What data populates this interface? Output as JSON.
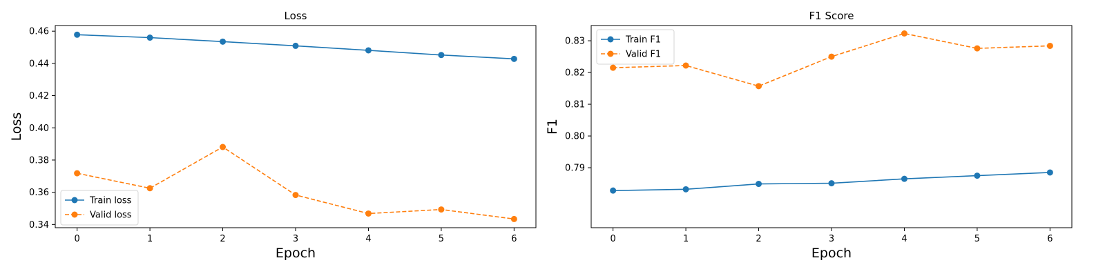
{
  "chart_data": [
    {
      "type": "line",
      "title": "Loss",
      "xlabel": "Epoch",
      "ylabel": "Loss",
      "x": [
        0,
        1,
        2,
        3,
        4,
        5,
        6
      ],
      "xlim": [
        -0.3,
        6.3
      ],
      "ylim": [
        0.338,
        0.4635
      ],
      "yticks": [
        "0.34",
        "0.36",
        "0.38",
        "0.40",
        "0.42",
        "0.44",
        "0.46"
      ],
      "ytick_values": [
        0.34,
        0.36,
        0.38,
        0.4,
        0.42,
        0.44,
        0.46
      ],
      "grid": false,
      "legend_position": "lower-left",
      "series": [
        {
          "name": "Train loss",
          "color": "#1f77b4",
          "style": "solid",
          "marker": "circle",
          "values": [
            0.4578,
            0.456,
            0.4535,
            0.4509,
            0.4481,
            0.4452,
            0.4428
          ]
        },
        {
          "name": "Valid loss",
          "color": "#ff7f0e",
          "style": "dashed",
          "marker": "circle",
          "values": [
            0.3718,
            0.3625,
            0.3881,
            0.3583,
            0.3468,
            0.3493,
            0.3434
          ]
        }
      ]
    },
    {
      "type": "line",
      "title": "F1 Score",
      "xlabel": "Epoch",
      "ylabel": "F1",
      "x": [
        0,
        1,
        2,
        3,
        4,
        5,
        6
      ],
      "xlim": [
        -0.3,
        6.3
      ],
      "ylim": [
        0.7711,
        0.8348
      ],
      "yticks": [
        "0.79",
        "0.80",
        "0.81",
        "0.82",
        "0.83"
      ],
      "ytick_values": [
        0.79,
        0.8,
        0.81,
        0.82,
        0.83
      ],
      "grid": false,
      "legend_position": "upper-left",
      "series": [
        {
          "name": "Train F1",
          "color": "#1f77b4",
          "style": "solid",
          "marker": "circle",
          "values": [
            0.7828,
            0.7832,
            0.7849,
            0.7851,
            0.7865,
            0.7875,
            0.7885
          ]
        },
        {
          "name": "Valid F1",
          "color": "#ff7f0e",
          "style": "dashed",
          "marker": "circle",
          "values": [
            0.8215,
            0.8222,
            0.8157,
            0.825,
            0.8323,
            0.8276,
            0.8284
          ]
        }
      ]
    }
  ]
}
